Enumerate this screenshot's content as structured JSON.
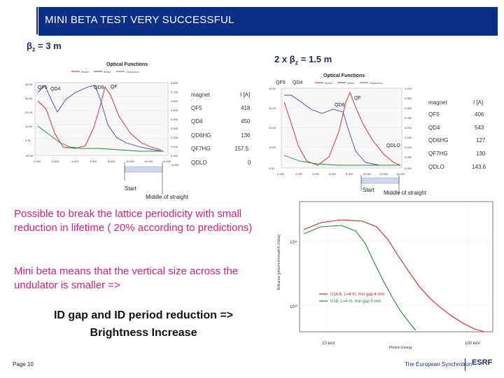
{
  "slide": {
    "title": "MINI BETA TEST VERY SUCCESSFUL",
    "beta_left_prefix": "β",
    "beta_left_sub": "z",
    "beta_left_value": " = 3 m",
    "beta_right_prefix": "2 x β",
    "beta_right_sub": "z",
    "beta_right_value": " = 1.5 m",
    "text1": "Possible to break the lattice periodicity with small reduction in lifetime ( 20% according to predictions)",
    "text2": "Mini beta means that the vertical size across the undulator is smaller =>",
    "conclusion_line1": "ID gap and ID period reduction =>",
    "conclusion_line2": "Brightness Increase",
    "page": "Page 10",
    "footer_brand": "The European Synchrotron",
    "footer_logo": "ESRF"
  },
  "plot_left": {
    "title": "Optical Functions",
    "legend": [
      "BetaX",
      "BetaZ",
      "Dispersion"
    ],
    "labels": [
      "QF5",
      "QD4",
      "QD6",
      "QF"
    ],
    "start_label": "Start",
    "middle_label": "Middle of straight",
    "table_header": [
      "magnet",
      "I [A]"
    ],
    "table": [
      [
        "QF5",
        "418"
      ],
      [
        "QD4",
        "450"
      ],
      [
        "QD6HG",
        "136"
      ],
      [
        "QF7HG",
        "157.5"
      ],
      [
        "QDLO",
        "0"
      ]
    ],
    "y_left": [
      "40.00",
      "35.00",
      "30.00",
      "25.00",
      "20.00",
      "15.00",
      "10.00",
      "5.00",
      "0.00",
      "-40.00"
    ],
    "x_ticks": [
      "0.000",
      "2.000",
      "4.000",
      "6.000",
      "8.000",
      "10.000",
      "12.000",
      "14.000"
    ],
    "y_right": [
      "0.800",
      "0.700",
      "0.600",
      "0.500",
      "0.400",
      "0.300",
      "0.200",
      "0.100",
      "0.000",
      "-0.000"
    ]
  },
  "plot_right": {
    "title": "Optical Functions",
    "legend": [
      "BetaX",
      "BetaZ",
      "Dispersion"
    ],
    "labels": [
      "QF5",
      "QD4",
      "QD6",
      "QF",
      "QDLO"
    ],
    "start_label": "Start",
    "middle_label": "Middle of straight",
    "table_header": [
      "magnet",
      "I [A]"
    ],
    "table": [
      [
        "QF5",
        "406"
      ],
      [
        "QD4",
        "543"
      ],
      [
        "QD6HG",
        "127"
      ],
      [
        "QF7HG",
        "130"
      ],
      [
        "QDLO",
        "143.6"
      ]
    ],
    "y_left": [
      "40.00",
      "35.00",
      "30.00",
      "25.00",
      "20.00",
      "15.00",
      "10.00",
      "5.00",
      "0.00"
    ],
    "x_ticks": [
      "0.000",
      "2.000",
      "4.000",
      "6.000",
      "8.000",
      "10.000",
      "12.000",
      "14.000"
    ],
    "y_right": [
      "0.400",
      "0.350",
      "0.300",
      "0.250",
      "0.200",
      "0.150",
      "0.100",
      "0.050",
      "0.000"
    ]
  },
  "brightness_plot": {
    "y_label": "Brilliance [ph/s/mm²/mrad²/0.1%bw]",
    "x_label": "Photon Energy",
    "y_ticks": [
      "10²¹",
      "10²⁰"
    ],
    "x_ticks": [
      "10 keV",
      "100 keV"
    ],
    "legend": [
      "U14.6, L=4 m, min gap 4 mm",
      "U18, L=4 m, min gap 5 mm"
    ]
  },
  "colors": {
    "header": "#0b2f86",
    "accent_text": "#e11b7a",
    "red": "#d62020",
    "green": "#1e8a2e",
    "blue": "#3a46b0"
  }
}
